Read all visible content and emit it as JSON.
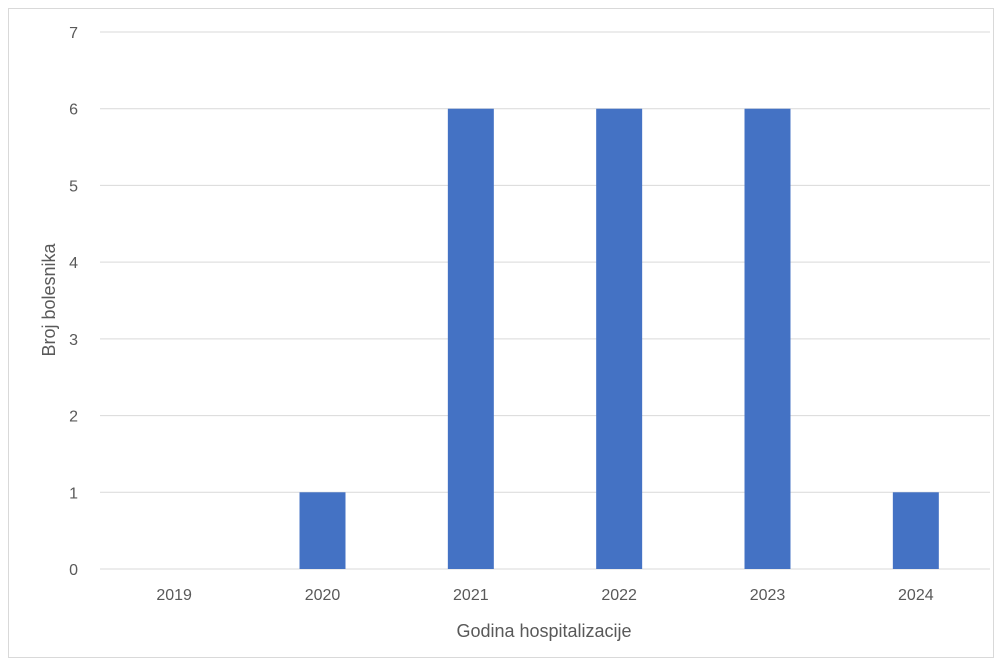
{
  "chart_data": {
    "type": "bar",
    "title": "",
    "xlabel": "Godina hospitalizacije",
    "ylabel": "Broj bolesnika",
    "categories": [
      "2019",
      "2020",
      "2021",
      "2022",
      "2023",
      "2024"
    ],
    "values": [
      0,
      1,
      6,
      6,
      6,
      1
    ],
    "ylim": [
      0,
      7
    ],
    "yticks": [
      0,
      1,
      2,
      3,
      4,
      5,
      6,
      7
    ],
    "grid": true,
    "legend": "none",
    "bar_color": "#4472C4",
    "grid_color": "#d9d9d9"
  }
}
